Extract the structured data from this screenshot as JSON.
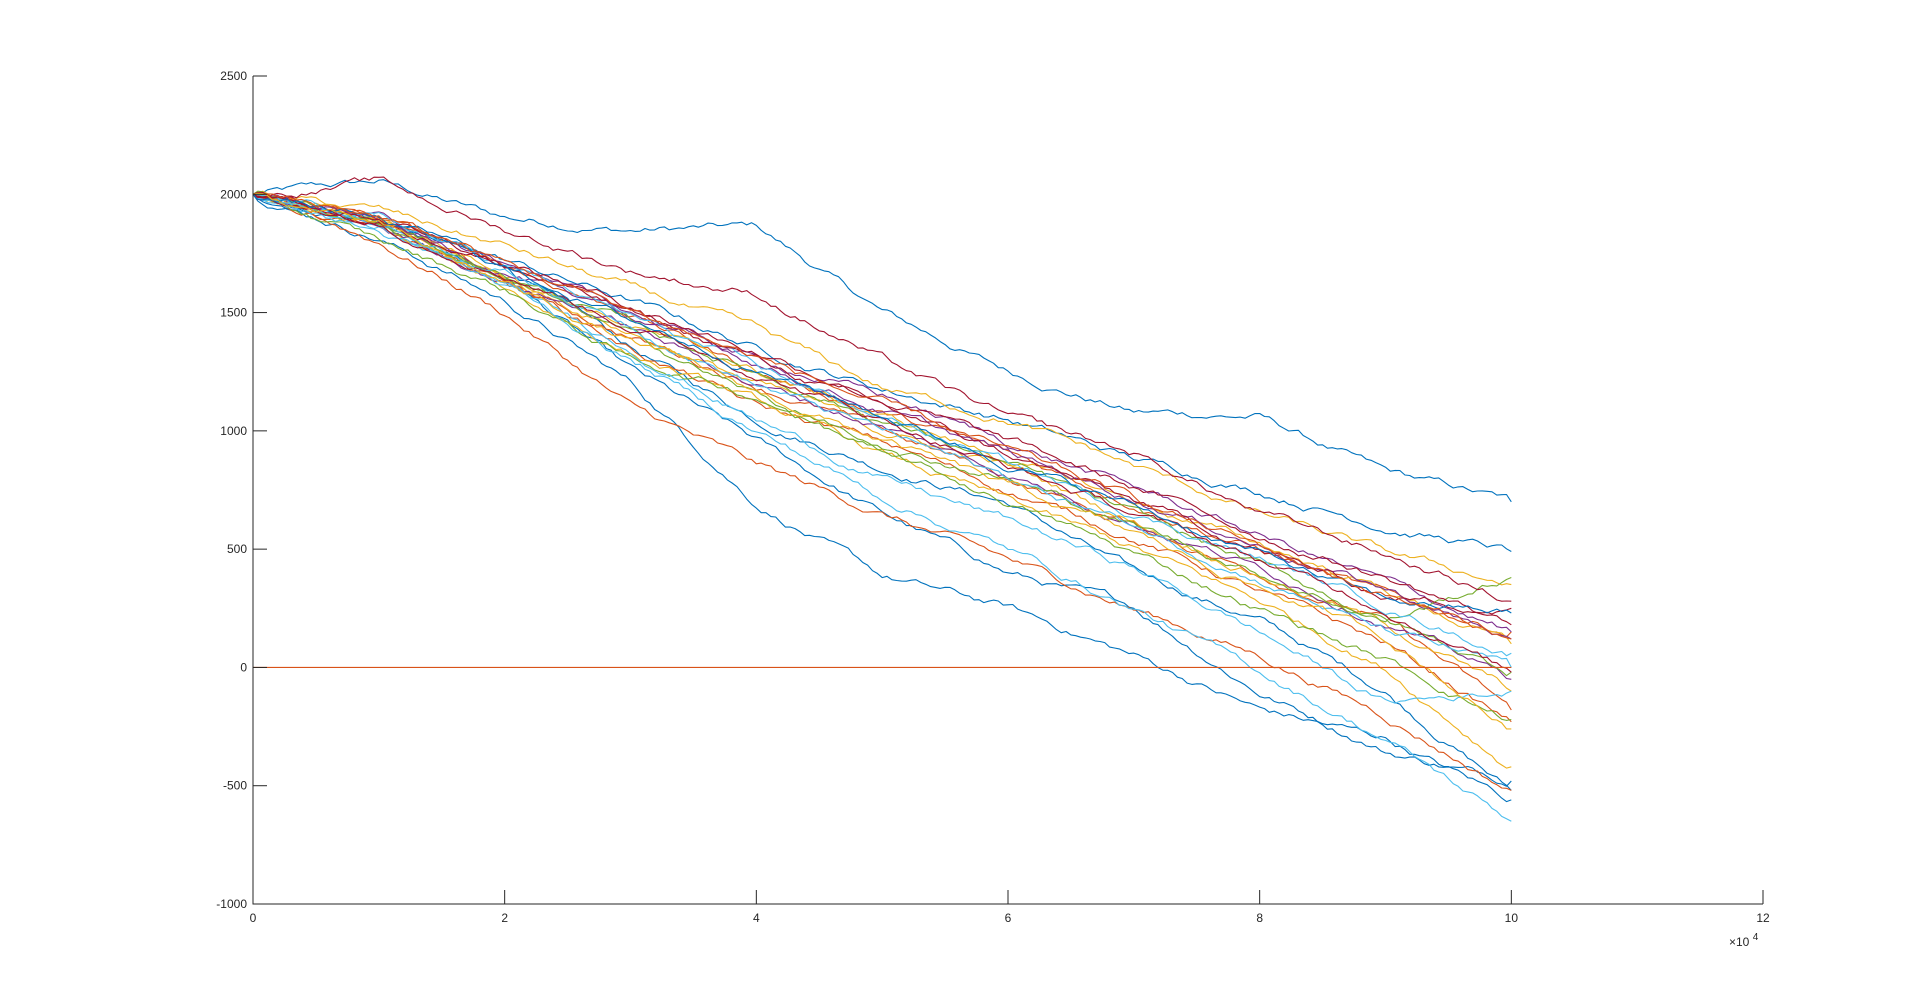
{
  "chart_data": {
    "type": "line",
    "title": "",
    "xlabel": "",
    "ylabel": "",
    "xlim": [
      0,
      12
    ],
    "ylim": [
      -1000,
      2500
    ],
    "x_exponent_label": "×10",
    "x_exponent_power": "4",
    "x_ticks": [
      {
        "value": 0,
        "label": "0"
      },
      {
        "value": 2,
        "label": "2"
      },
      {
        "value": 4,
        "label": "4"
      },
      {
        "value": 6,
        "label": "6"
      },
      {
        "value": 8,
        "label": "8"
      },
      {
        "value": 10,
        "label": "10"
      },
      {
        "value": 12,
        "label": "12"
      }
    ],
    "y_ticks": [
      {
        "value": 2500,
        "label": "2500"
      },
      {
        "value": 2000,
        "label": "2000"
      },
      {
        "value": 1500,
        "label": "1500"
      },
      {
        "value": 1000,
        "label": "1000"
      },
      {
        "value": 500,
        "label": "500"
      },
      {
        "value": 0,
        "label": "0"
      },
      {
        "value": -500,
        "label": "-500"
      },
      {
        "value": -1000,
        "label": "-1000"
      }
    ],
    "grid": false,
    "legend": "none",
    "reference_line": {
      "y": 0,
      "x_range": [
        0,
        10
      ],
      "color": "#D95319"
    },
    "series_x": [
      0,
      1,
      2,
      3,
      4,
      5,
      6,
      7,
      8,
      9,
      10
    ],
    "series": [
      {
        "color": "#0072BD",
        "values": [
          2000,
          2050,
          1900,
          1850,
          1860,
          1500,
          1250,
          1080,
          1060,
          820,
          700
        ]
      },
      {
        "color": "#0072BD",
        "values": [
          2000,
          1880,
          1700,
          1350,
          1050,
          850,
          700,
          400,
          200,
          -100,
          -520
        ]
      },
      {
        "color": "#0072BD",
        "values": [
          2000,
          1870,
          1650,
          1250,
          950,
          650,
          400,
          250,
          -100,
          -350,
          -480
        ]
      },
      {
        "color": "#0072BD",
        "values": [
          2000,
          1820,
          1550,
          1200,
          700,
          380,
          250,
          50,
          -180,
          -300,
          -560
        ]
      },
      {
        "color": "#0072BD",
        "values": [
          2000,
          1900,
          1720,
          1550,
          1350,
          1180,
          1050,
          880,
          750,
          600,
          490
        ]
      },
      {
        "color": "#D95319",
        "values": [
          2000,
          1800,
          1500,
          1100,
          850,
          650,
          450,
          250,
          50,
          -200,
          -520
        ]
      },
      {
        "color": "#D95319",
        "values": [
          2000,
          1850,
          1620,
          1400,
          1200,
          1000,
          800,
          600,
          400,
          200,
          -180
        ]
      },
      {
        "color": "#D95319",
        "values": [
          2000,
          1900,
          1700,
          1500,
          1250,
          1080,
          900,
          700,
          500,
          300,
          150
        ]
      },
      {
        "color": "#D95319",
        "values": [
          2000,
          1880,
          1650,
          1350,
          1100,
          950,
          750,
          550,
          320,
          100,
          -230
        ]
      },
      {
        "color": "#EDB120",
        "values": [
          2000,
          1930,
          1780,
          1600,
          1420,
          1180,
          1050,
          850,
          650,
          480,
          350
        ]
      },
      {
        "color": "#EDB120",
        "values": [
          2000,
          1850,
          1600,
          1330,
          1120,
          900,
          700,
          500,
          280,
          0,
          -420
        ]
      },
      {
        "color": "#EDB120",
        "values": [
          2000,
          1870,
          1640,
          1420,
          1200,
          1000,
          850,
          620,
          400,
          180,
          -100
        ]
      },
      {
        "color": "#EDB120",
        "values": [
          2000,
          1900,
          1680,
          1450,
          1250,
          1060,
          880,
          700,
          520,
          330,
          100
        ]
      },
      {
        "color": "#7E2F8E",
        "values": [
          2000,
          1880,
          1680,
          1500,
          1300,
          1150,
          950,
          760,
          560,
          360,
          150
        ]
      },
      {
        "color": "#7E2F8E",
        "values": [
          2000,
          1860,
          1640,
          1440,
          1200,
          1020,
          820,
          620,
          420,
          200,
          -50
        ]
      },
      {
        "color": "#7E2F8E",
        "values": [
          2000,
          1900,
          1700,
          1480,
          1290,
          1090,
          900,
          720,
          520,
          330,
          120
        ]
      },
      {
        "color": "#77AC30",
        "values": [
          2000,
          1800,
          1600,
          1300,
          1150,
          950,
          800,
          600,
          400,
          200,
          380
        ]
      },
      {
        "color": "#77AC30",
        "values": [
          2000,
          1880,
          1650,
          1400,
          1150,
          900,
          700,
          480,
          250,
          30,
          -220
        ]
      },
      {
        "color": "#77AC30",
        "values": [
          2000,
          1870,
          1660,
          1450,
          1250,
          1050,
          860,
          640,
          430,
          200,
          -20
        ]
      },
      {
        "color": "#4DBEEE",
        "values": [
          2000,
          1860,
          1620,
          1300,
          1000,
          720,
          500,
          250,
          -20,
          -300,
          -650
        ]
      },
      {
        "color": "#4DBEEE",
        "values": [
          2000,
          1840,
          1600,
          1350,
          1050,
          800,
          620,
          420,
          150,
          -150,
          -100
        ]
      },
      {
        "color": "#4DBEEE",
        "values": [
          2000,
          1880,
          1680,
          1450,
          1200,
          1000,
          800,
          600,
          380,
          150,
          0
        ]
      },
      {
        "color": "#4DBEEE",
        "values": [
          2000,
          1900,
          1700,
          1480,
          1260,
          1060,
          860,
          660,
          460,
          260,
          60
        ]
      },
      {
        "color": "#A2142F",
        "values": [
          2000,
          2050,
          1850,
          1680,
          1580,
          1300,
          1050,
          900,
          650,
          480,
          280
        ]
      },
      {
        "color": "#A2142F",
        "values": [
          2000,
          1900,
          1700,
          1500,
          1300,
          1100,
          900,
          700,
          500,
          300,
          250
        ]
      },
      {
        "color": "#A2142F",
        "values": [
          2000,
          1880,
          1680,
          1450,
          1250,
          1050,
          850,
          650,
          450,
          250,
          -20
        ]
      },
      {
        "color": "#A2142F",
        "values": [
          2000,
          1920,
          1720,
          1530,
          1340,
          1140,
          950,
          760,
          560,
          380,
          180
        ]
      },
      {
        "color": "#0072BD",
        "values": [
          2000,
          1890,
          1690,
          1470,
          1270,
          1070,
          870,
          680,
          480,
          280,
          230
        ]
      },
      {
        "color": "#D95319",
        "values": [
          2000,
          1910,
          1710,
          1510,
          1310,
          1110,
          910,
          710,
          510,
          310,
          120
        ]
      },
      {
        "color": "#EDB120",
        "values": [
          2000,
          1860,
          1620,
          1380,
          1160,
          960,
          760,
          560,
          340,
          130,
          -260
        ]
      }
    ]
  }
}
